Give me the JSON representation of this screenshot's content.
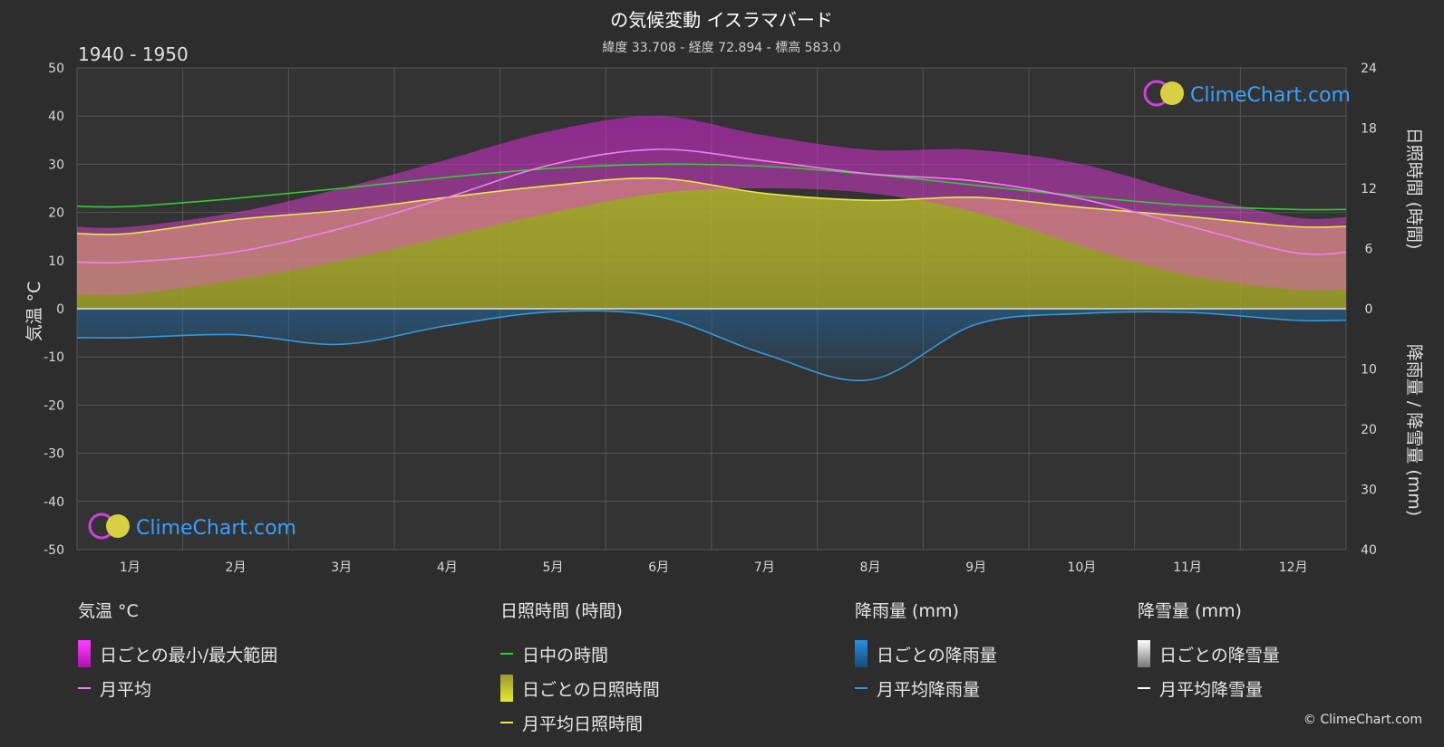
{
  "title": "の気候変動 イスラマバード",
  "subtitle": "緯度 33.708 - 経度 72.894 - 標高 583.0",
  "period": "1940 - 1950",
  "watermark": "ClimeChart.com",
  "copyright": "© ClimeChart.com",
  "chart_data": {
    "type": "line",
    "x": [
      "1月",
      "2月",
      "3月",
      "4月",
      "5月",
      "6月",
      "7月",
      "8月",
      "9月",
      "10月",
      "11月",
      "12月"
    ],
    "left_axis": {
      "label": "気温 °C",
      "ylim": [
        -50,
        50
      ],
      "ticks": [
        50,
        40,
        30,
        20,
        10,
        0,
        -10,
        -20,
        -30,
        -40,
        -50
      ]
    },
    "right_axis_top": {
      "label": "日照時間 (時間)",
      "ylim": [
        0,
        24
      ],
      "ticks": [
        24,
        18,
        12,
        6,
        0
      ]
    },
    "right_axis_bottom": {
      "label": "降雨量 / 降雪量 (mm)",
      "ylim": [
        0,
        40
      ],
      "ticks": [
        0,
        10,
        20,
        30,
        40
      ]
    },
    "grid": true,
    "series": [
      {
        "name": "日中の時間",
        "axis": "sunshine",
        "color": "#33cc33",
        "values": [
          10.2,
          11.0,
          12.0,
          13.1,
          14.0,
          14.4,
          14.2,
          13.4,
          12.3,
          11.2,
          10.3,
          9.9
        ]
      },
      {
        "name": "月平均日照時間",
        "axis": "sunshine",
        "color": "#e8e84a",
        "values": [
          7.5,
          8.9,
          9.8,
          11.1,
          12.3,
          13.0,
          11.5,
          10.8,
          11.1,
          10.1,
          9.2,
          8.2
        ]
      },
      {
        "name": "月平均",
        "axis": "temperature",
        "color": "#ee82ee",
        "values": [
          9.7,
          11.8,
          16.7,
          23.1,
          30.0,
          33.1,
          30.7,
          28.0,
          26.5,
          22.8,
          17.2,
          11.7
        ]
      },
      {
        "name": "月平均降雨量",
        "axis": "precipitation",
        "color": "#3399dd",
        "values": [
          4.8,
          4.3,
          5.9,
          2.8,
          0.5,
          1.3,
          7.5,
          11.8,
          2.6,
          0.8,
          0.6,
          1.9
        ]
      },
      {
        "name": "月平均降雪量",
        "axis": "precipitation",
        "color": "#ffffff",
        "values": [
          0,
          0,
          0,
          0,
          0,
          0,
          0,
          0,
          0,
          0,
          0,
          0
        ]
      }
    ],
    "bands": [
      {
        "name": "日ごとの最小/最大範囲",
        "axis": "temperature",
        "color": "#e020e0",
        "min": [
          3,
          6,
          10,
          15,
          20,
          24,
          25,
          24,
          20,
          13,
          7,
          4
        ],
        "max": [
          17,
          20,
          25,
          31,
          37,
          40,
          36,
          33,
          33,
          30,
          24,
          19
        ]
      },
      {
        "name": "日ごとの日照時間",
        "axis": "sunshine",
        "color": "#c8c832",
        "values": [
          7.5,
          8.9,
          9.8,
          11.1,
          12.3,
          13.0,
          11.5,
          10.8,
          11.1,
          10.1,
          9.2,
          8.2
        ]
      },
      {
        "name": "日ごとの降雨量",
        "axis": "precipitation",
        "color": "#1e90ff"
      },
      {
        "name": "日ごとの降雪量",
        "axis": "precipitation",
        "color": "#ffffff"
      }
    ]
  },
  "legend": {
    "temperature": {
      "header": "気温 °C",
      "items": [
        "日ごとの最小/最大範囲",
        "月平均"
      ]
    },
    "sunshine": {
      "header": "日照時間 (時間)",
      "items": [
        "日中の時間",
        "日ごとの日照時間",
        "月平均日照時間"
      ]
    },
    "rain": {
      "header": "降雨量 (mm)",
      "items": [
        "日ごとの降雨量",
        "月平均降雨量"
      ]
    },
    "snow": {
      "header": "降雪量 (mm)",
      "items": [
        "日ごとの降雪量",
        "月平均降雪量"
      ]
    }
  }
}
